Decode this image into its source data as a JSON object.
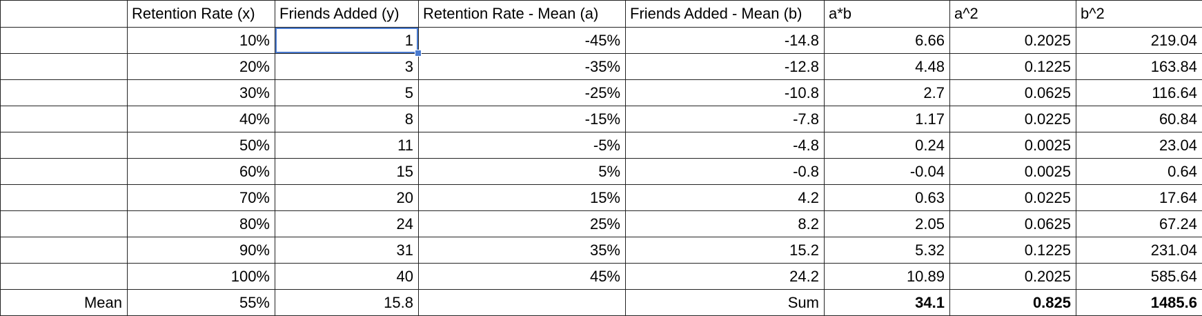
{
  "table": {
    "columns": [
      "Retention Rate (x)",
      "Friends Added (y)",
      "Retention Rate - Mean (a)",
      "Friends Added - Mean (b)",
      "a*b",
      "a^2",
      "b^2"
    ],
    "rows": [
      [
        "10%",
        "1",
        "-45%",
        "-14.8",
        "6.66",
        "0.2025",
        "219.04"
      ],
      [
        "20%",
        "3",
        "-35%",
        "-12.8",
        "4.48",
        "0.1225",
        "163.84"
      ],
      [
        "30%",
        "5",
        "-25%",
        "-10.8",
        "2.7",
        "0.0625",
        "116.64"
      ],
      [
        "40%",
        "8",
        "-15%",
        "-7.8",
        "1.17",
        "0.0225",
        "60.84"
      ],
      [
        "50%",
        "11",
        "-5%",
        "-4.8",
        "0.24",
        "0.0025",
        "23.04"
      ],
      [
        "60%",
        "15",
        "5%",
        "-0.8",
        "-0.04",
        "0.0025",
        "0.64"
      ],
      [
        "70%",
        "20",
        "15%",
        "4.2",
        "0.63",
        "0.0225",
        "17.64"
      ],
      [
        "80%",
        "24",
        "25%",
        "8.2",
        "2.05",
        "0.0625",
        "67.24"
      ],
      [
        "90%",
        "31",
        "35%",
        "15.2",
        "5.32",
        "0.1225",
        "231.04"
      ],
      [
        "100%",
        "40",
        "45%",
        "24.2",
        "10.89",
        "0.2025",
        "585.64"
      ]
    ],
    "footer": {
      "row_label": "Mean",
      "x_mean": "55%",
      "y_mean": "15.8",
      "sum_label": "Sum",
      "sums": [
        "34.1",
        "0.825",
        "1485.6"
      ]
    }
  }
}
